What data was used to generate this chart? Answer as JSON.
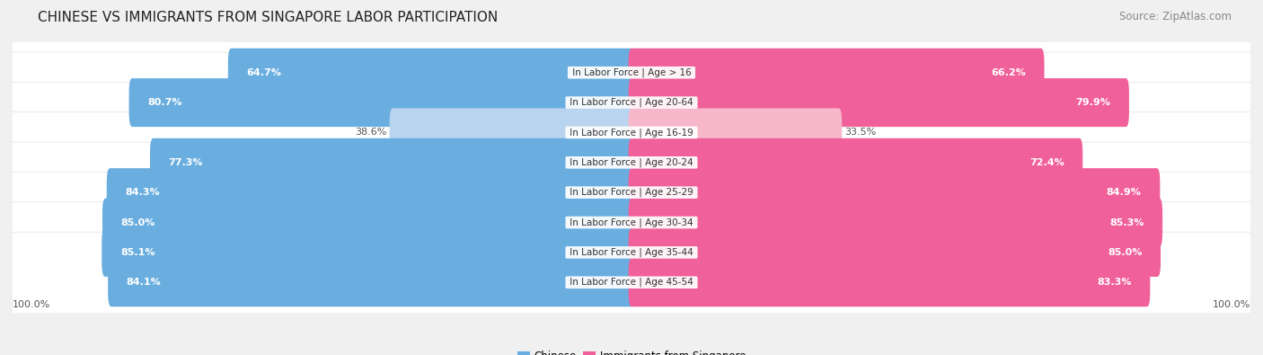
{
  "title": "CHINESE VS IMMIGRANTS FROM SINGAPORE LABOR PARTICIPATION",
  "source": "Source: ZipAtlas.com",
  "categories": [
    "In Labor Force | Age > 16",
    "In Labor Force | Age 20-64",
    "In Labor Force | Age 16-19",
    "In Labor Force | Age 20-24",
    "In Labor Force | Age 25-29",
    "In Labor Force | Age 30-34",
    "In Labor Force | Age 35-44",
    "In Labor Force | Age 45-54"
  ],
  "chinese_values": [
    64.7,
    80.7,
    38.6,
    77.3,
    84.3,
    85.0,
    85.1,
    84.1
  ],
  "singapore_values": [
    66.2,
    79.9,
    33.5,
    72.4,
    84.9,
    85.3,
    85.0,
    83.3
  ],
  "chinese_color": "#6AAEE0",
  "chinese_color_light": "#B8D4EF",
  "singapore_color": "#F0609A",
  "singapore_color_light": "#F8B8CC",
  "bg_color": "#f0f0f0",
  "row_bg_color": "#ffffff",
  "row_bg_edge": "#e0e0e0",
  "max_value": 100.0,
  "legend_chinese": "Chinese",
  "legend_singapore": "Immigrants from Singapore",
  "title_fontsize": 11,
  "source_fontsize": 8.5,
  "bar_label_fontsize": 8,
  "cat_label_fontsize": 7.5,
  "axis_label_fontsize": 8
}
